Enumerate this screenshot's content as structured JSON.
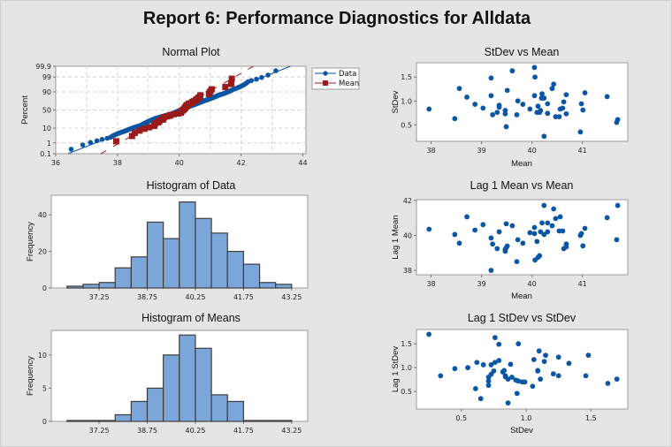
{
  "title": "Report 6: Performance Diagnostics for Alldata",
  "colors": {
    "background": "#e5e5e5",
    "data_blue": "#0b56a4",
    "mean_red": "#9a1b1b",
    "bar_fill": "#7ba6d9",
    "bar_outline": "#3d3d3d",
    "grid": "#d4d4d4"
  },
  "chart_data": [
    {
      "type": "scatter",
      "subtype": "normal-probability",
      "title": "Normal Plot",
      "ylabel": "Percent",
      "xlabel": "",
      "x_ticks": [
        36,
        38,
        40,
        42,
        44
      ],
      "y_ticks": [
        0.1,
        1,
        10,
        50,
        90,
        99,
        99.9
      ],
      "y_tick_labels": [
        "0.1",
        "1",
        "10",
        "50",
        "90",
        "99",
        "99.9"
      ],
      "xlim": [
        36,
        44.1
      ],
      "y_scale": "normal-probability",
      "grid": true,
      "legend_position": "right",
      "legend": [
        "Data",
        "Mean"
      ],
      "series": [
        {
          "name": "Data",
          "marker": "circle",
          "color": "#0b56a4",
          "source": "Histogram of Data (individual values)",
          "fit_line": [
            [
              36.4,
              0.1
            ],
            [
              43.6,
              99.9
            ]
          ]
        },
        {
          "name": "Mean",
          "marker": "square",
          "color": "#9a1b1b",
          "source": "subgroup means",
          "fit_line": [
            [
              37.46,
              0.1
            ],
            [
              42.4,
              99.9
            ]
          ],
          "fit_line_style": "dashed"
        }
      ]
    },
    {
      "type": "bar",
      "subtype": "histogram",
      "title": "Histogram of Data",
      "ylabel": "Frequency",
      "xlabel": "",
      "bin_width": 0.5,
      "bin_centers": [
        36.5,
        37.0,
        37.5,
        38.0,
        38.5,
        39.0,
        39.5,
        40.0,
        40.5,
        41.0,
        41.5,
        42.0,
        42.5,
        43.0
      ],
      "values": [
        1,
        2,
        3,
        11,
        17,
        36,
        27,
        47,
        38,
        30,
        20,
        13,
        3,
        2
      ],
      "x_ticks": [
        "37.25",
        "38.75",
        "40.25",
        "41.75",
        "43.25"
      ],
      "y_ticks": [
        0,
        20,
        40
      ],
      "xlim": [
        35.76,
        43.75
      ],
      "ylim": [
        0,
        50.7
      ]
    },
    {
      "type": "bar",
      "subtype": "histogram",
      "title": "Histogram of Means",
      "ylabel": "Frequency",
      "xlabel": "",
      "bin_width": 0.5,
      "bin_centers": [
        36.5,
        37.0,
        37.5,
        38.0,
        38.5,
        39.0,
        39.5,
        40.0,
        40.5,
        41.0,
        41.5,
        42.0,
        42.5,
        43.0
      ],
      "values": [
        0,
        0,
        0,
        1,
        3,
        5,
        10,
        13,
        11,
        4,
        3,
        0,
        0,
        0
      ],
      "x_ticks": [
        "37.25",
        "38.75",
        "40.25",
        "41.75",
        "43.25"
      ],
      "y_ticks": [
        0,
        5,
        10
      ],
      "xlim": [
        35.76,
        43.75
      ],
      "ylim": [
        0,
        13.7
      ]
    },
    {
      "type": "scatter",
      "title": "StDev vs Mean",
      "xlabel": "Mean",
      "ylabel": "StDev",
      "x_ticks": [
        38,
        39,
        40,
        41
      ],
      "y_ticks": [
        0.5,
        1.0,
        1.5
      ],
      "y_tick_labels": [
        "0.5",
        "1.0",
        "1.5"
      ],
      "xlim": [
        37.71,
        41.9
      ],
      "ylim": [
        0.154,
        1.8
      ],
      "points": [
        [
          37.96,
          0.83
        ],
        [
          38.47,
          0.63
        ],
        [
          38.56,
          1.26
        ],
        [
          38.71,
          1.08
        ],
        [
          38.87,
          0.93
        ],
        [
          39.03,
          0.85
        ],
        [
          39.19,
          1.48
        ],
        [
          39.19,
          1.11
        ],
        [
          39.22,
          0.71
        ],
        [
          39.31,
          0.76
        ],
        [
          39.35,
          0.91
        ],
        [
          39.35,
          0.87
        ],
        [
          39.47,
          0.8
        ],
        [
          39.47,
          0.73
        ],
        [
          39.49,
          0.46
        ],
        [
          39.51,
          1.22
        ],
        [
          39.61,
          1.63
        ],
        [
          39.7,
          0.71
        ],
        [
          39.72,
          1.0
        ],
        [
          39.82,
          0.93
        ],
        [
          39.96,
          0.83
        ],
        [
          40.05,
          1.7
        ],
        [
          40.05,
          1.11
        ],
        [
          40.06,
          1.5
        ],
        [
          40.1,
          0.76
        ],
        [
          40.12,
          0.89
        ],
        [
          40.15,
          0.76
        ],
        [
          40.17,
          0.8
        ],
        [
          40.19,
          1.06
        ],
        [
          40.2,
          1.15
        ],
        [
          40.22,
          1.06
        ],
        [
          40.24,
          1.06
        ],
        [
          40.24,
          0.26
        ],
        [
          40.31,
          0.94
        ],
        [
          40.31,
          0.74
        ],
        [
          40.4,
          1.26
        ],
        [
          40.43,
          1.35
        ],
        [
          40.47,
          0.67
        ],
        [
          40.54,
          0.67
        ],
        [
          40.56,
          0.83
        ],
        [
          40.61,
          0.85
        ],
        [
          40.63,
          0.98
        ],
        [
          40.68,
          1.13
        ],
        [
          40.68,
          0.73
        ],
        [
          40.96,
          0.35
        ],
        [
          40.98,
          0.94
        ],
        [
          41.01,
          0.81
        ],
        [
          41.05,
          1.17
        ],
        [
          41.49,
          1.09
        ],
        [
          41.68,
          0.55
        ],
        [
          41.7,
          0.61
        ]
      ]
    },
    {
      "type": "scatter",
      "title": "Lag 1 Mean vs Mean",
      "xlabel": "Mean",
      "ylabel": "Lag 1 Mean",
      "x_ticks": [
        38,
        39,
        40,
        41
      ],
      "y_ticks": [
        38,
        40,
        42
      ],
      "y_tick_labels": [
        "38",
        "40",
        "42"
      ],
      "xlim": [
        37.71,
        41.9
      ],
      "ylim": [
        37.75,
        42.04
      ],
      "points": [
        [
          37.96,
          40.35
        ],
        [
          38.47,
          40.05
        ],
        [
          38.56,
          39.55
        ],
        [
          38.71,
          41.06
        ],
        [
          38.87,
          40.3
        ],
        [
          39.03,
          40.61
        ],
        [
          39.19,
          39.85
        ],
        [
          39.19,
          38.0
        ],
        [
          39.22,
          39.5
        ],
        [
          39.31,
          39.24
        ],
        [
          39.35,
          40.2
        ],
        [
          39.47,
          39.19
        ],
        [
          39.47,
          39.09
        ],
        [
          39.49,
          39.29
        ],
        [
          39.51,
          39.39
        ],
        [
          39.49,
          40.66
        ],
        [
          39.61,
          40.55
        ],
        [
          39.7,
          38.5
        ],
        [
          39.72,
          39.75
        ],
        [
          39.82,
          39.55
        ],
        [
          39.96,
          40.15
        ],
        [
          40.05,
          40.45
        ],
        [
          40.05,
          40.1
        ],
        [
          40.06,
          38.59
        ],
        [
          40.1,
          39.65
        ],
        [
          40.12,
          38.74
        ],
        [
          40.15,
          38.84
        ],
        [
          40.17,
          40.2
        ],
        [
          40.2,
          40.71
        ],
        [
          40.24,
          41.71
        ],
        [
          40.24,
          40.05
        ],
        [
          40.31,
          40.71
        ],
        [
          40.31,
          40.2
        ],
        [
          40.4,
          40.55
        ],
        [
          40.43,
          41.51
        ],
        [
          40.47,
          40.96
        ],
        [
          40.54,
          40.25
        ],
        [
          40.56,
          41.06
        ],
        [
          40.61,
          40.25
        ],
        [
          40.63,
          39.24
        ],
        [
          40.68,
          39.5
        ],
        [
          40.68,
          39.34
        ],
        [
          40.96,
          40.0
        ],
        [
          40.98,
          40.1
        ],
        [
          41.01,
          39.4
        ],
        [
          41.05,
          40.4
        ],
        [
          41.49,
          41.01
        ],
        [
          41.68,
          39.75
        ],
        [
          41.7,
          41.71
        ]
      ]
    },
    {
      "type": "scatter",
      "title": "Lag 1 StDev vs StDev",
      "xlabel": "StDev",
      "ylabel": "Lag 1 StDev",
      "x_ticks": [
        0.5,
        1.0,
        1.5
      ],
      "x_tick_labels": [
        "0.5",
        "1.0",
        "1.5"
      ],
      "y_ticks": [
        0.5,
        1.0,
        1.5
      ],
      "y_tick_labels": [
        "0.5",
        "1.0",
        "1.5"
      ],
      "xlim": [
        0.154,
        1.784
      ],
      "ylim": [
        0.133,
        1.8
      ],
      "points": [
        [
          0.25,
          1.7
        ],
        [
          0.34,
          0.83
        ],
        [
          0.45,
          0.98
        ],
        [
          0.55,
          1.0
        ],
        [
          0.61,
          0.56
        ],
        [
          0.62,
          1.11
        ],
        [
          0.65,
          0.35
        ],
        [
          0.67,
          1.06
        ],
        [
          0.71,
          0.8
        ],
        [
          0.71,
          0.72
        ],
        [
          0.71,
          0.63
        ],
        [
          0.73,
          0.86
        ],
        [
          0.73,
          1.06
        ],
        [
          0.75,
          0.93
        ],
        [
          0.76,
          1.63
        ],
        [
          0.76,
          1.11
        ],
        [
          0.79,
          1.49
        ],
        [
          0.79,
          1.15
        ],
        [
          0.82,
          0.91
        ],
        [
          0.83,
          0.94
        ],
        [
          0.84,
          0.83
        ],
        [
          0.84,
          0.81
        ],
        [
          0.86,
          0.26
        ],
        [
          0.86,
          0.76
        ],
        [
          0.88,
          1.07
        ],
        [
          0.89,
          0.8
        ],
        [
          0.92,
          0.74
        ],
        [
          0.93,
          0.46
        ],
        [
          0.94,
          1.5
        ],
        [
          0.94,
          0.72
        ],
        [
          0.97,
          0.7
        ],
        [
          0.99,
          0.7
        ],
        [
          1.05,
          0.61
        ],
        [
          1.06,
          1.17
        ],
        [
          1.09,
          0.94
        ],
        [
          1.09,
          0.93
        ],
        [
          1.1,
          1.35
        ],
        [
          1.11,
          0.76
        ],
        [
          1.14,
          1.13
        ],
        [
          1.15,
          1.26
        ],
        [
          1.21,
          0.87
        ],
        [
          1.25,
          1.22
        ],
        [
          1.25,
          0.83
        ],
        [
          1.33,
          1.09
        ],
        [
          1.46,
          0.83
        ],
        [
          1.48,
          1.26
        ],
        [
          1.63,
          0.67
        ],
        [
          1.7,
          0.76
        ]
      ]
    }
  ]
}
